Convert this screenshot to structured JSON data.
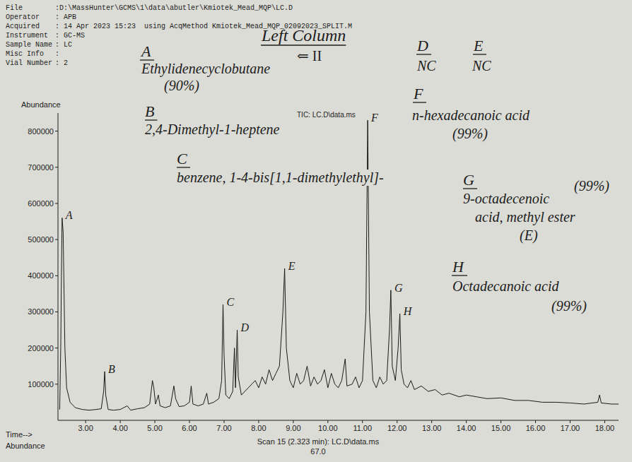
{
  "chart_data": {
    "type": "line",
    "title": "Left Column",
    "subtitle": "⇐ II",
    "y_label": "Abundance",
    "x_label": "Time-->",
    "header": [
      {
        "label": "File",
        "value": ":D:\\MassHunter\\GCMS\\1\\data\\abutler\\Kmiotek_Mead_MQP\\LC.D"
      },
      {
        "label": "Operator",
        "value": ": APB"
      },
      {
        "label": "Acquired",
        "value": ": 14 Apr 2023 15:23",
        "extra": "using AcqMethod Kmiotek_Mead_MQP_02092023_SPLIT.M"
      },
      {
        "label": "Instrument",
        "value": ":    GC-MS"
      },
      {
        "label": "Sample Name",
        "value": ": LC"
      },
      {
        "label": "Misc Info",
        "value": ":"
      },
      {
        "label": "Vial Number",
        "value": ": 2"
      }
    ],
    "footer": {
      "label": "Abundance",
      "scan": "Scan 15 (2.323 min): LC.D\\data.ms",
      "value": "67.0"
    },
    "x": [
      2.25,
      2.28,
      2.3,
      2.32,
      2.35,
      2.4,
      2.45,
      2.55,
      2.7,
      2.9,
      3.1,
      3.3,
      3.45,
      3.52,
      3.55,
      3.58,
      3.65,
      3.8,
      4.0,
      4.2,
      4.3,
      4.5,
      4.7,
      4.85,
      4.93,
      4.97,
      5.02,
      5.1,
      5.15,
      5.3,
      5.45,
      5.55,
      5.6,
      5.7,
      5.85,
      6.0,
      6.05,
      6.1,
      6.25,
      6.4,
      6.5,
      6.55,
      6.7,
      6.85,
      6.93,
      6.97,
      7.0,
      7.05,
      7.15,
      7.25,
      7.3,
      7.33,
      7.38,
      7.41,
      7.5,
      7.6,
      7.7,
      7.8,
      7.9,
      8.0,
      8.1,
      8.2,
      8.3,
      8.4,
      8.5,
      8.6,
      8.7,
      8.75,
      8.8,
      8.9,
      9.0,
      9.1,
      9.2,
      9.3,
      9.4,
      9.5,
      9.6,
      9.7,
      9.8,
      9.9,
      10.0,
      10.1,
      10.2,
      10.3,
      10.4,
      10.5,
      10.55,
      10.7,
      10.8,
      10.9,
      11.0,
      11.1,
      11.15,
      11.2,
      11.3,
      11.4,
      11.5,
      11.6,
      11.7,
      11.78,
      11.82,
      11.86,
      11.95,
      12.03,
      12.08,
      12.12,
      12.2,
      12.3,
      12.4,
      12.5,
      12.7,
      12.9,
      13.1,
      13.3,
      13.5,
      13.8,
      14.0,
      14.3,
      14.6,
      15.0,
      15.4,
      15.8,
      16.2,
      16.6,
      17.0,
      17.4,
      17.8,
      17.85,
      17.9,
      18.2,
      18.4
    ],
    "series": [
      {
        "name": "TIC: LC.D\\data.ms",
        "color": "#1a1a1a",
        "values": [
          30000,
          200000,
          400000,
          560000,
          520000,
          200000,
          90000,
          50000,
          35000,
          30000,
          28000,
          30000,
          32000,
          80000,
          135000,
          70000,
          30000,
          28000,
          30000,
          40000,
          28000,
          32000,
          35000,
          45000,
          110000,
          90000,
          45000,
          70000,
          40000,
          35000,
          40000,
          95000,
          60000,
          38000,
          40000,
          50000,
          95000,
          45000,
          40000,
          45000,
          75000,
          45000,
          50000,
          60000,
          110000,
          320000,
          180000,
          70000,
          60000,
          80000,
          200000,
          90000,
          250000,
          120000,
          70000,
          80000,
          90000,
          100000,
          110000,
          90000,
          120000,
          100000,
          140000,
          110000,
          130000,
          150000,
          300000,
          420000,
          200000,
          110000,
          90000,
          130000,
          100000,
          110000,
          150000,
          95000,
          120000,
          100000,
          110000,
          140000,
          90000,
          130000,
          100000,
          90000,
          110000,
          170000,
          95000,
          100000,
          120000,
          90000,
          110000,
          300000,
          830000,
          300000,
          110000,
          90000,
          120000,
          100000,
          110000,
          250000,
          360000,
          150000,
          110000,
          200000,
          295000,
          140000,
          100000,
          90000,
          110000,
          85000,
          95000,
          80000,
          85000,
          70000,
          75000,
          65000,
          70000,
          65000,
          60000,
          62000,
          55000,
          55000,
          50000,
          50000,
          48000,
          45000,
          50000,
          70000,
          48000,
          45000,
          45000
        ]
      }
    ],
    "xlim": [
      2.2,
      18.4
    ],
    "ylim": [
      0,
      850000
    ],
    "xticks": [
      {
        "value": 3,
        "label": "3.00"
      },
      {
        "value": 4,
        "label": "4.00"
      },
      {
        "value": 5,
        "label": "5.00"
      },
      {
        "value": 6,
        "label": "6.00"
      },
      {
        "value": 7,
        "label": "7.00"
      },
      {
        "value": 8,
        "label": "8.00"
      },
      {
        "value": 9,
        "label": "9.00"
      },
      {
        "value": 10,
        "label": "10.00"
      },
      {
        "value": 11,
        "label": "11.00"
      },
      {
        "value": 12,
        "label": "12.00"
      },
      {
        "value": 13,
        "label": "13.00"
      },
      {
        "value": 14,
        "label": "14.00"
      },
      {
        "value": 15,
        "label": "15.00"
      },
      {
        "value": 16,
        "label": "16.00"
      },
      {
        "value": 17,
        "label": "17.00"
      },
      {
        "value": 18,
        "label": "18.00"
      }
    ],
    "yticks": [
      100000,
      200000,
      300000,
      400000,
      500000,
      600000,
      700000,
      800000
    ],
    "grid": false,
    "peak_labels": [
      {
        "label": "A",
        "x": 2.32
      },
      {
        "label": "B",
        "x": 3.55
      },
      {
        "label": "C",
        "x": 6.97
      },
      {
        "label": "D",
        "x": 7.38
      },
      {
        "label": "E",
        "x": 8.75
      },
      {
        "label": "F",
        "x": 11.15
      },
      {
        "label": "G",
        "x": 11.82
      },
      {
        "label": "H",
        "x": 12.08
      }
    ],
    "annotations": [
      {
        "letter": "A",
        "lines": [
          "Ethylidenecyclobutane",
          "(90%)"
        ]
      },
      {
        "letter": "B",
        "lines": [
          "2,4-Dimethyl-1-heptene"
        ]
      },
      {
        "letter": "C",
        "lines": [
          "benzene, 1-4-bis[1,1-dimethylethyl]-"
        ]
      },
      {
        "letter": "D",
        "lines": [
          "NC"
        ]
      },
      {
        "letter": "E",
        "lines": [
          "NC"
        ]
      },
      {
        "letter": "F",
        "lines": [
          "n-hexadecanoic acid",
          "(99%)"
        ]
      },
      {
        "letter": "G",
        "lines": [
          "9-octadecenoic",
          "acid, methyl ester",
          "(E)",
          "(99%)"
        ]
      },
      {
        "letter": "H",
        "lines": [
          "Octadecanoic acid",
          "(99%)"
        ]
      }
    ]
  }
}
